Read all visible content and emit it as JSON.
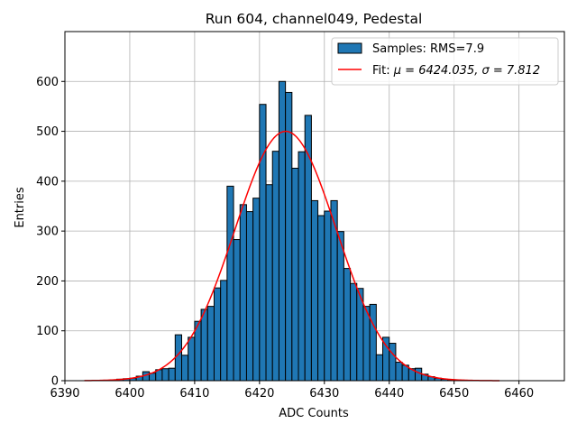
{
  "chart_data": {
    "type": "bar",
    "title": "Run 604, channel049, Pedestal",
    "xlabel": "ADC Counts",
    "ylabel": "Entries",
    "xlim": [
      6390,
      6467
    ],
    "ylim": [
      0,
      700
    ],
    "xticks": [
      6390,
      6400,
      6410,
      6420,
      6430,
      6440,
      6450,
      6460
    ],
    "yticks": [
      0,
      100,
      200,
      300,
      400,
      500,
      600
    ],
    "grid": true,
    "legend_position": "top-right",
    "histogram": {
      "name": "Samples: RMS=7.9",
      "color": "#1f77b4",
      "bin_start": 6398,
      "bin_width": 1,
      "values": [
        3,
        4,
        5,
        9,
        18,
        15,
        22,
        24,
        25,
        92,
        51,
        87,
        119,
        143,
        149,
        186,
        201,
        390,
        283,
        353,
        339,
        366,
        554,
        393,
        460,
        600,
        578,
        426,
        459,
        532,
        361,
        331,
        340,
        361,
        299,
        225,
        195,
        185,
        149,
        153,
        52,
        87,
        75,
        37,
        31,
        24,
        25,
        13,
        8,
        5,
        3,
        2,
        1
      ]
    },
    "fit": {
      "name_prefix": "Fit: ",
      "name_math": "μ = 6424.035, σ = 7.812",
      "color": "#ff0000",
      "mu": 6424.035,
      "sigma": 7.812,
      "amplitude": 500,
      "x_range": [
        6393,
        6457
      ]
    }
  }
}
